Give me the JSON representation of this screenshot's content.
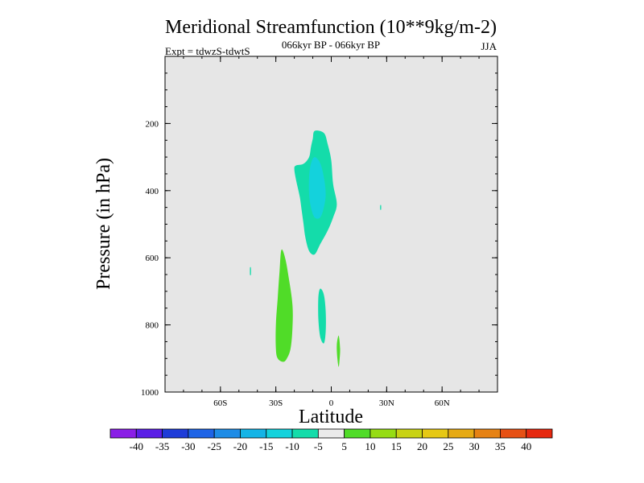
{
  "chart_data": {
    "type": "contour",
    "title": "Meridional Streamfunction (10**9kg/m-2)",
    "subtitle": "066kyr BP - 066kyr BP",
    "left_label": "Expt = tdwzS-tdwtS",
    "right_label": "JJA",
    "xlabel": "Latitude",
    "ylabel": "Pressure (in hPa)",
    "xlim": [
      -90,
      90
    ],
    "ylim": [
      1000,
      0
    ],
    "x_ticks": [
      {
        "value": -60,
        "label": "60S"
      },
      {
        "value": -30,
        "label": "30S"
      },
      {
        "value": 0,
        "label": "0"
      },
      {
        "value": 30,
        "label": "30N"
      },
      {
        "value": 60,
        "label": "60N"
      }
    ],
    "y_ticks": [
      {
        "value": 200,
        "label": "200"
      },
      {
        "value": 400,
        "label": "400"
      },
      {
        "value": 600,
        "label": "600"
      },
      {
        "value": 800,
        "label": "800"
      },
      {
        "value": 1000,
        "label": "1000"
      }
    ],
    "plot_background": "#e6e6e6",
    "colorbar": {
      "levels": [
        -40,
        -35,
        -30,
        -25,
        -20,
        -15,
        -10,
        -5,
        5,
        10,
        15,
        20,
        25,
        30,
        35,
        40
      ],
      "labels": [
        "-40",
        "-35",
        "-30",
        "-25",
        "-20",
        "-15",
        "-10",
        "-5",
        "5",
        "10",
        "15",
        "20",
        "25",
        "30",
        "35",
        "40"
      ],
      "colors": [
        "#8a1ee6",
        "#5a1ee6",
        "#1e3cd8",
        "#1e64e6",
        "#1e8ce6",
        "#14b4e6",
        "#14d2dc",
        "#14dcaa",
        "#eaeaea",
        "#50dc28",
        "#96dc14",
        "#c8d214",
        "#e6c814",
        "#e6aa14",
        "#e68214",
        "#e65014",
        "#e6280f"
      ]
    },
    "regions": [
      {
        "name": "upper-cell-outer",
        "value_range": [
          -10,
          -5
        ],
        "color": "#14dcaa",
        "points": [
          [
            -9,
            222
          ],
          [
            -4,
            228
          ],
          [
            -2,
            260
          ],
          [
            0,
            310
          ],
          [
            1,
            380
          ],
          [
            3,
            440
          ],
          [
            1,
            480
          ],
          [
            -2,
            520
          ],
          [
            -6,
            560
          ],
          [
            -9,
            590
          ],
          [
            -12,
            580
          ],
          [
            -14,
            540
          ],
          [
            -15,
            500
          ],
          [
            -16,
            460
          ],
          [
            -17,
            420
          ],
          [
            -19,
            370
          ],
          [
            -20,
            335
          ],
          [
            -19,
            325
          ],
          [
            -15,
            320
          ],
          [
            -12,
            300
          ],
          [
            -11,
            270
          ],
          [
            -10,
            245
          ]
        ]
      },
      {
        "name": "upper-cell-core",
        "value_range": [
          -15,
          -10
        ],
        "color": "#14d2dc",
        "points": [
          [
            -9,
            300
          ],
          [
            -6,
            318
          ],
          [
            -4,
            360
          ],
          [
            -3,
            410
          ],
          [
            -4,
            450
          ],
          [
            -6,
            480
          ],
          [
            -9,
            480
          ],
          [
            -11,
            450
          ],
          [
            -12,
            410
          ],
          [
            -12,
            360
          ],
          [
            -11,
            320
          ]
        ]
      },
      {
        "name": "lower-sh-cell",
        "value_range": [
          5,
          10
        ],
        "color": "#50dc28",
        "points": [
          [
            -27,
            577
          ],
          [
            -25,
            600
          ],
          [
            -23,
            660
          ],
          [
            -21,
            740
          ],
          [
            -21,
            810
          ],
          [
            -22,
            870
          ],
          [
            -24,
            900
          ],
          [
            -26,
            910
          ],
          [
            -29,
            900
          ],
          [
            -30,
            870
          ],
          [
            -30,
            800
          ],
          [
            -29,
            720
          ],
          [
            -28,
            640
          ]
        ]
      },
      {
        "name": "lower-eq-cell",
        "value_range": [
          -10,
          -5
        ],
        "color": "#14dcaa",
        "points": [
          [
            -6,
            692
          ],
          [
            -4,
            710
          ],
          [
            -3,
            760
          ],
          [
            -3,
            820
          ],
          [
            -4,
            855
          ],
          [
            -6,
            835
          ],
          [
            -7,
            780
          ],
          [
            -7,
            720
          ]
        ]
      },
      {
        "name": "lower-nh-blob",
        "value_range": [
          5,
          10
        ],
        "color": "#50dc28",
        "points": [
          [
            4,
            832
          ],
          [
            4.8,
            870
          ],
          [
            4.5,
            905
          ],
          [
            4,
            925
          ],
          [
            3.3,
            900
          ],
          [
            3,
            860
          ]
        ]
      },
      {
        "name": "speck-nh",
        "value_range": [
          -10,
          -5
        ],
        "color": "#14dcaa",
        "points": [
          [
            26.5,
            444
          ],
          [
            27,
            444
          ],
          [
            27,
            456
          ],
          [
            26.5,
            456
          ]
        ]
      },
      {
        "name": "speck-sh",
        "value_range": [
          -10,
          -5
        ],
        "color": "#14dcaa",
        "points": [
          [
            -44,
            630
          ],
          [
            -43.5,
            630
          ],
          [
            -43.5,
            650
          ],
          [
            -44,
            650
          ]
        ]
      }
    ]
  }
}
